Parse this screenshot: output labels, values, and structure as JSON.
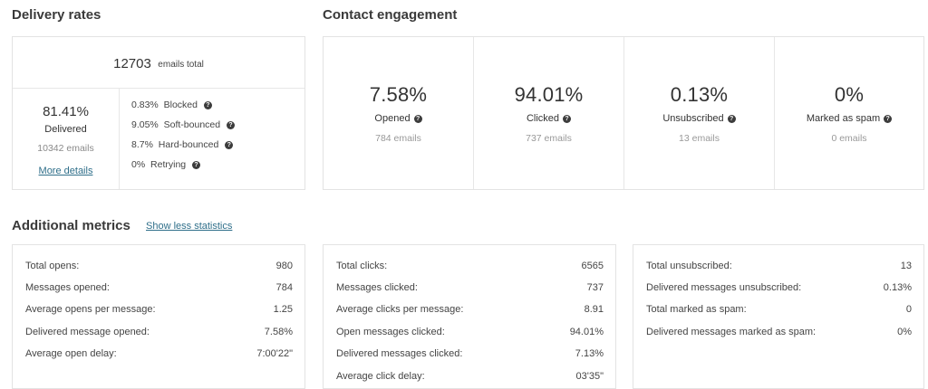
{
  "delivery": {
    "title": "Delivery rates",
    "total_number": "12703",
    "total_label": "emails total",
    "delivered_pct": "81.41%",
    "delivered_label": "Delivered",
    "delivered_count": "10342 emails",
    "more_details": "More details",
    "breakdown": [
      {
        "pct": "0.83%",
        "label": "Blocked"
      },
      {
        "pct": "9.05%",
        "label": "Soft-bounced"
      },
      {
        "pct": "8.7%",
        "label": "Hard-bounced"
      },
      {
        "pct": "0%",
        "label": "Retrying"
      }
    ]
  },
  "engagement": {
    "title": "Contact engagement",
    "items": [
      {
        "pct": "7.58%",
        "label": "Opened",
        "count": "784 emails"
      },
      {
        "pct": "94.01%",
        "label": "Clicked",
        "count": "737 emails"
      },
      {
        "pct": "0.13%",
        "label": "Unsubscribed",
        "count": "13 emails"
      },
      {
        "pct": "0%",
        "label": "Marked as spam",
        "count": "0 emails"
      }
    ]
  },
  "additional": {
    "title": "Additional metrics",
    "toggle_link": "Show less statistics",
    "opens": [
      {
        "label": "Total opens:",
        "value": "980"
      },
      {
        "label": "Messages opened:",
        "value": "784"
      },
      {
        "label": "Average opens per message:",
        "value": "1.25"
      },
      {
        "label": "Delivered message opened:",
        "value": "7.58%"
      },
      {
        "label": "Average open delay:",
        "value": "7:00'22\""
      }
    ],
    "clicks": [
      {
        "label": "Total clicks:",
        "value": "6565"
      },
      {
        "label": "Messages clicked:",
        "value": "737"
      },
      {
        "label": "Average clicks per message:",
        "value": "8.91"
      },
      {
        "label": "Open messages clicked:",
        "value": "94.01%"
      },
      {
        "label": "Delivered messages clicked:",
        "value": "7.13%"
      },
      {
        "label": "Average click delay:",
        "value": "03'35\""
      }
    ],
    "unsubs": [
      {
        "label": "Total unsubscribed:",
        "value": "13"
      },
      {
        "label": "Delivered messages unsubscribed:",
        "value": "0.13%"
      },
      {
        "label": "Total marked as spam:",
        "value": "0"
      },
      {
        "label": "Delivered messages marked as spam:",
        "value": "0%"
      }
    ]
  }
}
